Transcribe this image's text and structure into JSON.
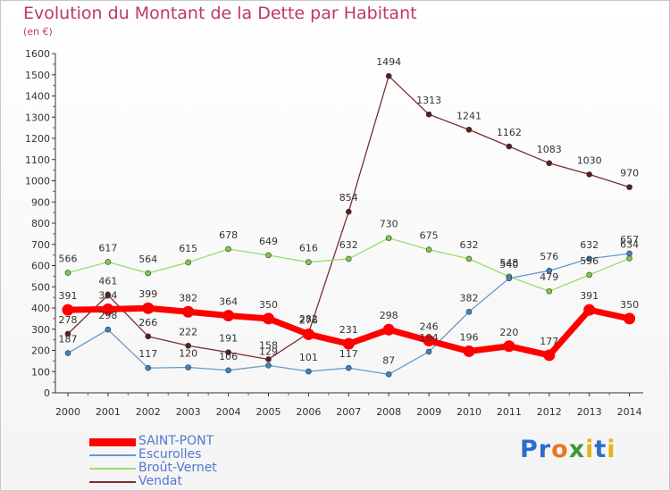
{
  "title": "Evolution du Montant de la Dette par Habitant",
  "subtitle": "(en €)",
  "logo": {
    "text": "Proxiti",
    "colors": [
      "#2a6fc9",
      "#2a6fc9",
      "#e87722",
      "#3a9a3a",
      "#e7b416",
      "#2a6fc9",
      "#e7b416"
    ]
  },
  "chart_data": {
    "type": "line",
    "title": "Evolution du Montant de la Dette par Habitant",
    "ylabel": "(en €)",
    "xlabel": "",
    "ylim": [
      0,
      1600
    ],
    "yticks": [
      0,
      100,
      200,
      300,
      400,
      500,
      600,
      700,
      800,
      900,
      1000,
      1100,
      1200,
      1300,
      1400,
      1500,
      1600
    ],
    "grid": false,
    "legend_position": "bottom-left",
    "categories": [
      "2000",
      "2001",
      "2002",
      "2003",
      "2004",
      "2005",
      "2006",
      "2007",
      "2008",
      "2009",
      "2010",
      "2011",
      "2012",
      "2013",
      "2014"
    ],
    "series": [
      {
        "name": "Vendat",
        "color": "#7a2e2e",
        "marker": "#5a1f1f",
        "width": 1.3,
        "values": [
          278,
          461,
          266,
          222,
          191,
          158,
          282,
          854,
          1494,
          1313,
          1241,
          1162,
          1083,
          1030,
          970
        ]
      },
      {
        "name": "Broût-Vernet",
        "color": "#99dd66",
        "marker": "#7ccc44",
        "width": 1.3,
        "values": [
          566,
          617,
          564,
          615,
          678,
          649,
          616,
          632,
          730,
          675,
          632,
          548,
          479,
          556,
          634
        ]
      },
      {
        "name": "Escurolles",
        "color": "#6699cc",
        "marker": "#3f84c4",
        "width": 1.3,
        "values": [
          187,
          298,
          117,
          120,
          106,
          129,
          101,
          117,
          87,
          194,
          382,
          540,
          576,
          632,
          657
        ]
      },
      {
        "name": "SAINT-PONT",
        "color": "#ff0000",
        "marker": "#ff0000",
        "width": 7,
        "values": [
          391,
          394,
          399,
          382,
          364,
          350,
          276,
          231,
          298,
          246,
          196,
          220,
          177,
          391,
          350
        ]
      }
    ]
  }
}
